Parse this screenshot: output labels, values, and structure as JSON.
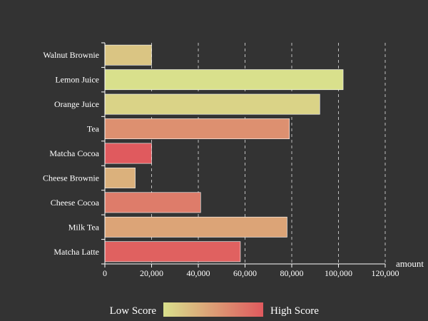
{
  "chart_data": {
    "type": "bar",
    "orientation": "horizontal",
    "categories": [
      "Walnut Brownie",
      "Lemon Juice",
      "Orange Juice",
      "Tea",
      "Matcha Cocoa",
      "Cheese Brownie",
      "Cheese Cocoa",
      "Milk Tea",
      "Matcha Latte"
    ],
    "series": [
      {
        "values": [
          20000,
          102000,
          92000,
          79000,
          20000,
          13000,
          41000,
          78000,
          58000
        ],
        "scores": [
          0.2,
          0.0,
          0.1,
          0.6,
          1.0,
          0.35,
          0.75,
          0.45,
          0.95
        ]
      }
    ],
    "xlabel": "amount",
    "ylabel": "",
    "xlim": [
      0,
      120000
    ],
    "xticks": [
      0,
      20000,
      40000,
      60000,
      80000,
      100000,
      120000
    ],
    "xtick_labels": [
      "0",
      "20,000",
      "40,000",
      "60,000",
      "80,000",
      "100,000",
      "120,000"
    ],
    "grid": "vertical-dashed",
    "legend": {
      "type": "continuous-color",
      "position": "bottom-center",
      "low_label": "Low Score",
      "high_label": "High Score",
      "low_color": "#d9e08c",
      "high_color": "#e05a5e"
    }
  },
  "colors": {
    "background": "#333333",
    "text": "#ffffff",
    "grid": "#d8d8d8"
  }
}
